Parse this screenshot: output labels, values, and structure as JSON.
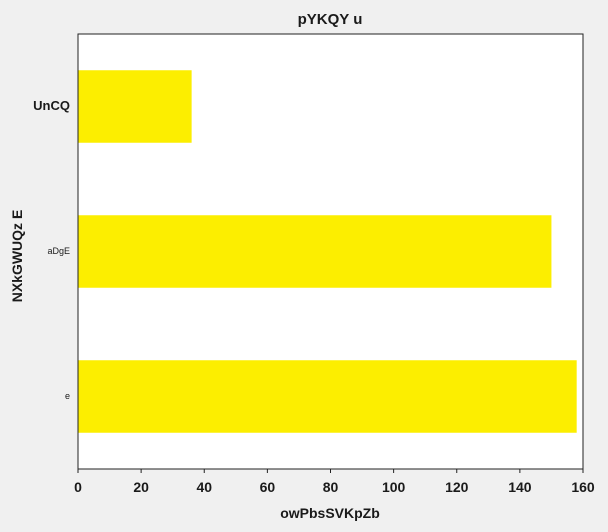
{
  "chart_data": {
    "type": "bar",
    "orientation": "horizontal",
    "title": "pYKQY u",
    "xlabel": "owPbsSVKpZb",
    "ylabel": "NXkGWUQz E",
    "categories": [
      "UnCQ",
      "aDgE",
      "e"
    ],
    "values": [
      36,
      150,
      158
    ],
    "xlim": [
      0,
      160
    ],
    "xticks": [
      "0",
      "20",
      "40",
      "60",
      "80",
      "100",
      "120",
      "140",
      "160"
    ],
    "bar_color": "#fcee00",
    "background": "#ffffff",
    "grid": false,
    "legend": "none"
  }
}
